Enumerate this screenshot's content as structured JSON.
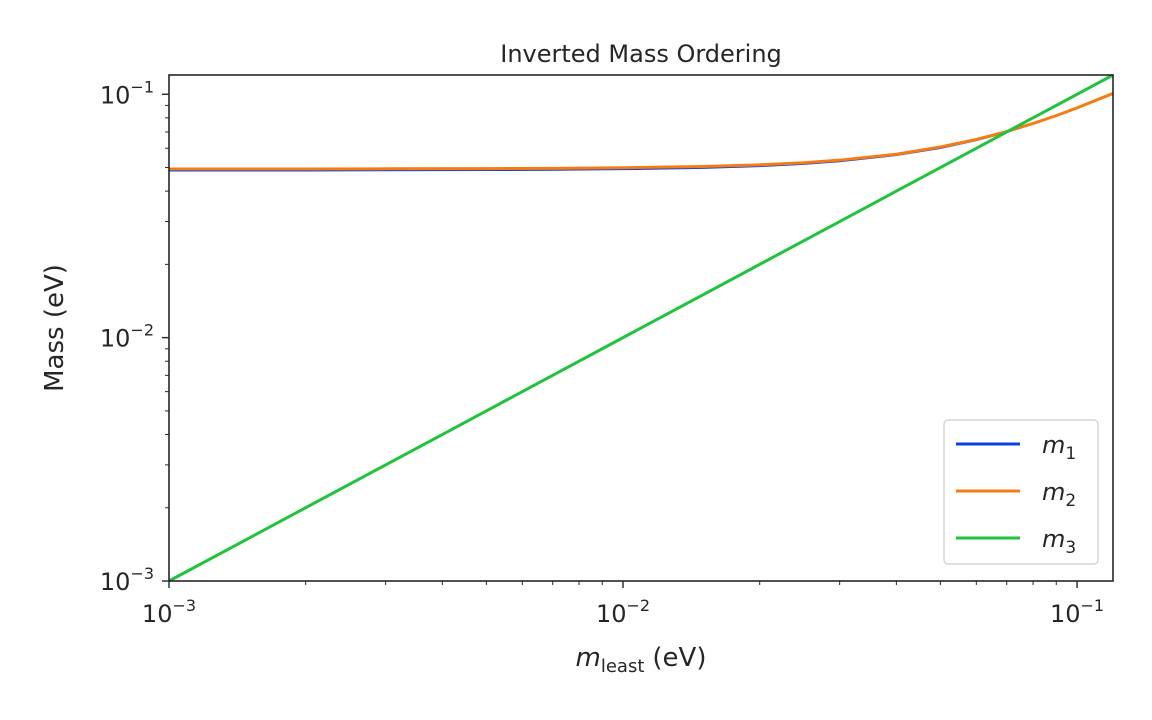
{
  "chart_data": {
    "type": "line",
    "title": "Inverted Mass Ordering",
    "xlabel": {
      "symbol": "m",
      "subscript": "least",
      "unit": "(eV)"
    },
    "ylabel": "Mass (eV)",
    "xscale": "log",
    "yscale": "log",
    "xlim": [
      0.001,
      0.12
    ],
    "ylim": [
      0.001,
      0.12
    ],
    "xticks": [
      {
        "value": 0.001,
        "base": "10",
        "exp": "−3"
      },
      {
        "value": 0.01,
        "base": "10",
        "exp": "−2"
      },
      {
        "value": 0.1,
        "base": "10",
        "exp": "−1"
      }
    ],
    "yticks": [
      {
        "value": 0.001,
        "base": "10",
        "exp": "−3"
      },
      {
        "value": 0.01,
        "base": "10",
        "exp": "−2"
      },
      {
        "value": 0.1,
        "base": "10",
        "exp": "−1"
      }
    ],
    "grid": false,
    "legend_position": "lower-right",
    "x": [
      0.001,
      0.002,
      0.003,
      0.005,
      0.007,
      0.01,
      0.015,
      0.02,
      0.025,
      0.03,
      0.04,
      0.05,
      0.06,
      0.07,
      0.08,
      0.09,
      0.1,
      0.12
    ],
    "series": [
      {
        "name": "m",
        "subscript": "1",
        "color": "#0a3fe6",
        "values": [
          0.0485,
          0.0485,
          0.0486,
          0.0487,
          0.0488,
          0.0491,
          0.0497,
          0.0505,
          0.0516,
          0.0529,
          0.0561,
          0.06,
          0.0646,
          0.0698,
          0.0754,
          0.0813,
          0.0874,
          0.1004
        ]
      },
      {
        "name": "m",
        "subscript": "2",
        "color": "#f57c14",
        "values": [
          0.0493,
          0.0493,
          0.0494,
          0.0495,
          0.0496,
          0.0499,
          0.0505,
          0.0513,
          0.0523,
          0.0536,
          0.0567,
          0.0607,
          0.0652,
          0.0703,
          0.0759,
          0.0817,
          0.0879,
          0.1008
        ]
      },
      {
        "name": "m",
        "subscript": "3",
        "color": "#1ec43b",
        "values": [
          0.001,
          0.002,
          0.003,
          0.005,
          0.007,
          0.01,
          0.015,
          0.02,
          0.025,
          0.03,
          0.04,
          0.05,
          0.06,
          0.07,
          0.08,
          0.09,
          0.1,
          0.12
        ]
      }
    ]
  }
}
